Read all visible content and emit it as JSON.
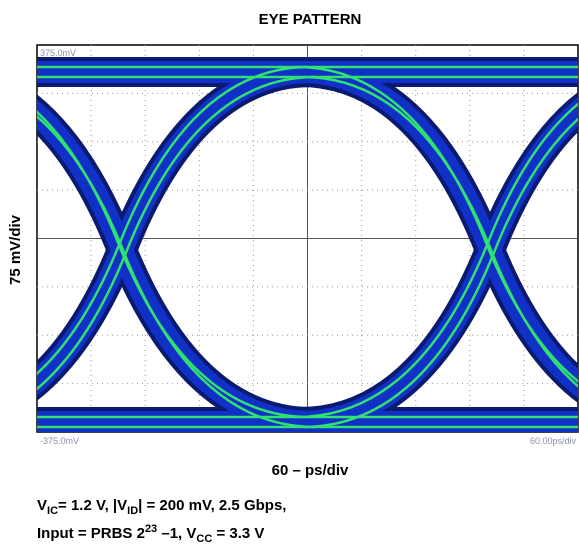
{
  "chart_data": {
    "type": "eye",
    "title": "EYE PATTERN",
    "xlabel": "60 – ps/div",
    "ylabel": "75 mV/div",
    "screen_labels": {
      "top_left": "375.0mV",
      "bottom_left": "-375.0mV",
      "bottom_right": "60.00ps/div"
    },
    "caption": [
      [
        "V",
        "IC",
        "= 1.2 V, |V",
        "ID",
        "| = 200 mV, 2.5 Gbps,"
      ],
      [
        "Input = PRBS 2",
        "23",
        " –1, V",
        "CC",
        " = 3.3 V"
      ]
    ]
  }
}
